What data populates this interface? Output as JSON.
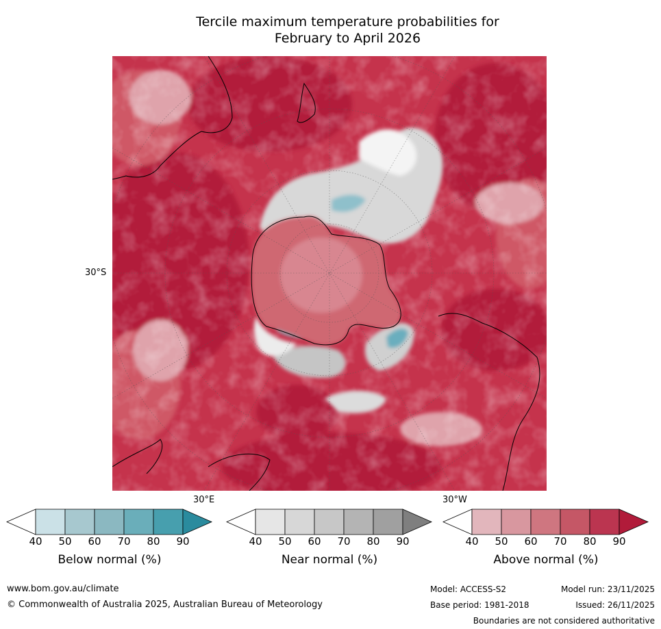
{
  "title_line1": "Tercile maximum temperature probabilities for",
  "title_line2": "February to April 2026",
  "map": {
    "lat_label": "30°S",
    "lon_label_left": "30°E",
    "lon_label_right": "30°W",
    "colors": {
      "ocean_base": "#c5334c",
      "dark_red": "#b21b3a",
      "mid_red": "#cf5866",
      "pink": "#dfa3ab",
      "near_grey": "#d8d8d8",
      "white": "#f4f4f4",
      "cyan": "#6aaebe",
      "coast": "#000000"
    }
  },
  "colorbars": [
    {
      "title": "Below normal (%)",
      "ticks": [
        "40",
        "50",
        "60",
        "70",
        "80",
        "90"
      ],
      "colors": [
        "#ffffff",
        "#cbe1e7",
        "#a7c8cf",
        "#8bb8c1",
        "#6aaeba",
        "#479fae",
        "#2a8b9e"
      ]
    },
    {
      "title": "Near normal (%)",
      "ticks": [
        "40",
        "50",
        "60",
        "70",
        "80",
        "90"
      ],
      "colors": [
        "#ffffff",
        "#e6e6e6",
        "#d7d7d7",
        "#c7c7c7",
        "#b4b4b4",
        "#a0a0a0",
        "#7f7f7f"
      ]
    },
    {
      "title": "Above normal (%)",
      "ticks": [
        "40",
        "50",
        "60",
        "70",
        "80",
        "90"
      ],
      "colors": [
        "#ffffff",
        "#e2b6bc",
        "#d8979f",
        "#cf7680",
        "#c55766",
        "#bb3550",
        "#b11b3a"
      ]
    }
  ],
  "footer": {
    "website": "www.bom.gov.au/climate",
    "copyright": "© Commonwealth of Australia 2025, Australian Bureau of Meteorology",
    "model": "Model: ACCESS-S2",
    "base_period": "Base period: 1981-2018",
    "model_run": "Model run: 23/11/2025",
    "issued": "Issued: 26/11/2025",
    "disclaimer": "Boundaries are not considered authoritative"
  }
}
